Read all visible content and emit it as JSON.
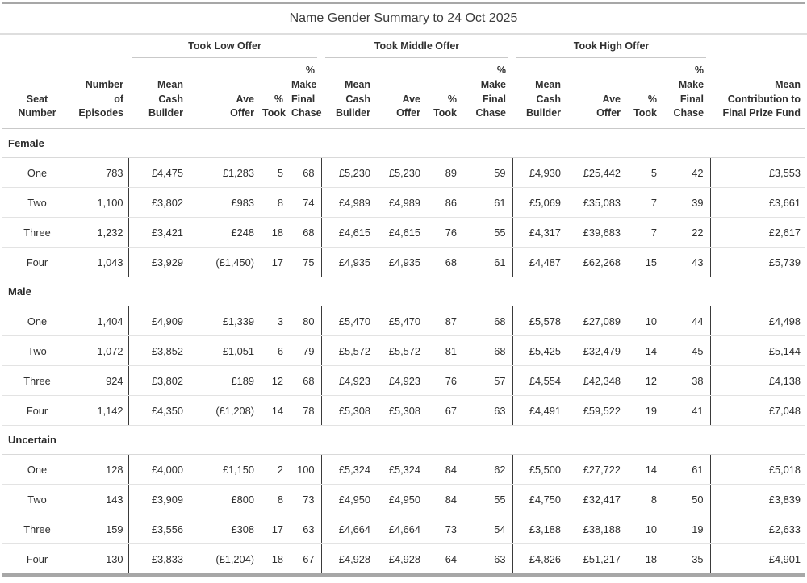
{
  "title": "Name Gender Summary to 24 Oct 2025",
  "header": {
    "groups": [
      "Took Low Offer",
      "Took Middle Offer",
      "Took High Offer"
    ],
    "cols": [
      "Seat\nNumber",
      "Number\nof\nEpisodes",
      "Mean\nCash\nBuilder",
      "Ave\nOffer",
      "%\nTook",
      "%\nMake\nFinal\nChase",
      "Mean\nCash\nBuilder",
      "Ave\nOffer",
      "%\nTook",
      "%\nMake\nFinal\nChase",
      "Mean\nCash\nBuilder",
      "Ave\nOffer",
      "%\nTook",
      "%\nMake\nFinal\nChase",
      "Mean\nContribution to\nFinal Prize Fund"
    ]
  },
  "chart_data": {
    "type": "table",
    "title": "Name Gender Summary to 24 Oct 2025",
    "column_groups": [
      "Took Low Offer",
      "Took Middle Offer",
      "Took High Offer"
    ],
    "columns": [
      "Seat Number",
      "Number of Episodes",
      "Low: Mean Cash Builder",
      "Low: Ave Offer",
      "Low: % Took",
      "Low: % Make Final Chase",
      "Middle: Mean Cash Builder",
      "Middle: Ave Offer",
      "Middle: % Took",
      "Middle: % Make Final Chase",
      "High: Mean Cash Builder",
      "High: Ave Offer",
      "High: % Took",
      "High: % Make Final Chase",
      "Mean Contribution to Final Prize Fund"
    ],
    "sections": [
      {
        "name": "Female",
        "rows": [
          [
            "One",
            "783",
            "£4,475",
            "£1,283",
            "5",
            "68",
            "£5,230",
            "£5,230",
            "89",
            "59",
            "£4,930",
            "£25,442",
            "5",
            "42",
            "£3,553"
          ],
          [
            "Two",
            "1,100",
            "£3,802",
            "£983",
            "8",
            "74",
            "£4,989",
            "£4,989",
            "86",
            "61",
            "£5,069",
            "£35,083",
            "7",
            "39",
            "£3,661"
          ],
          [
            "Three",
            "1,232",
            "£3,421",
            "£248",
            "18",
            "68",
            "£4,615",
            "£4,615",
            "76",
            "55",
            "£4,317",
            "£39,683",
            "7",
            "22",
            "£2,617"
          ],
          [
            "Four",
            "1,043",
            "£3,929",
            "(£1,450)",
            "17",
            "75",
            "£4,935",
            "£4,935",
            "68",
            "61",
            "£4,487",
            "£62,268",
            "15",
            "43",
            "£5,739"
          ]
        ]
      },
      {
        "name": "Male",
        "rows": [
          [
            "One",
            "1,404",
            "£4,909",
            "£1,339",
            "3",
            "80",
            "£5,470",
            "£5,470",
            "87",
            "68",
            "£5,578",
            "£27,089",
            "10",
            "44",
            "£4,498"
          ],
          [
            "Two",
            "1,072",
            "£3,852",
            "£1,051",
            "6",
            "79",
            "£5,572",
            "£5,572",
            "81",
            "68",
            "£5,425",
            "£32,479",
            "14",
            "45",
            "£5,144"
          ],
          [
            "Three",
            "924",
            "£3,802",
            "£189",
            "12",
            "68",
            "£4,923",
            "£4,923",
            "76",
            "57",
            "£4,554",
            "£42,348",
            "12",
            "38",
            "£4,138"
          ],
          [
            "Four",
            "1,142",
            "£4,350",
            "(£1,208)",
            "14",
            "78",
            "£5,308",
            "£5,308",
            "67",
            "63",
            "£4,491",
            "£59,522",
            "19",
            "41",
            "£7,048"
          ]
        ]
      },
      {
        "name": "Uncertain",
        "rows": [
          [
            "One",
            "128",
            "£4,000",
            "£1,150",
            "2",
            "100",
            "£5,324",
            "£5,324",
            "84",
            "62",
            "£5,500",
            "£27,722",
            "14",
            "61",
            "£5,018"
          ],
          [
            "Two",
            "143",
            "£3,909",
            "£800",
            "8",
            "73",
            "£4,950",
            "£4,950",
            "84",
            "55",
            "£4,750",
            "£32,417",
            "8",
            "50",
            "£3,839"
          ],
          [
            "Three",
            "159",
            "£3,556",
            "£308",
            "17",
            "63",
            "£4,664",
            "£4,664",
            "73",
            "54",
            "£3,188",
            "£38,188",
            "10",
            "19",
            "£2,633"
          ],
          [
            "Four",
            "130",
            "£3,833",
            "(£1,204)",
            "18",
            "67",
            "£4,928",
            "£4,928",
            "64",
            "63",
            "£4,826",
            "£51,217",
            "18",
            "35",
            "£4,901"
          ]
        ]
      }
    ]
  }
}
